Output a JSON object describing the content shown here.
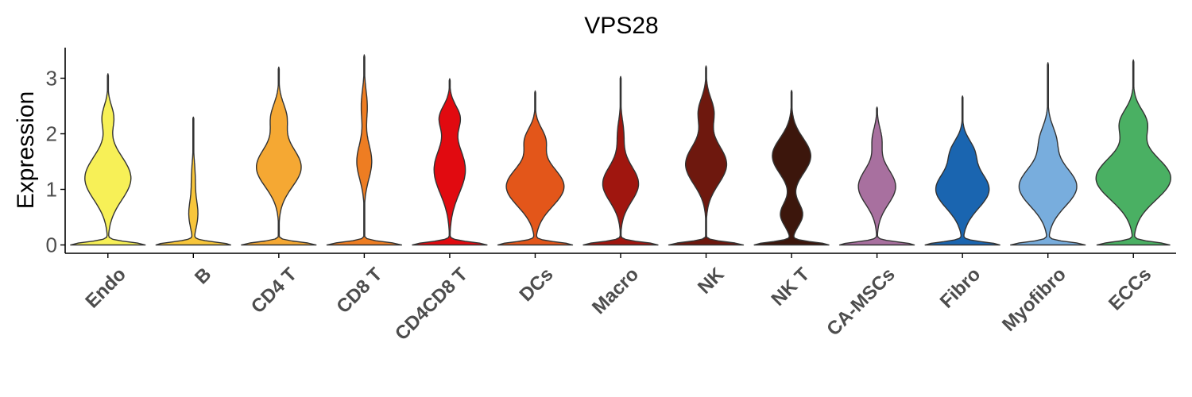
{
  "chart_data": {
    "type": "violin",
    "title": "VPS28",
    "xlabel": "",
    "ylabel": "Expression",
    "ylim": [
      -0.15,
      3.55
    ],
    "yticks": [
      0,
      1,
      2,
      3
    ],
    "grid": false,
    "legend": "none",
    "categories": [
      "Endo",
      "B",
      "CD4 T",
      "CD8 T",
      "CD4CD8 T",
      "DCs",
      "Macro",
      "NK",
      "NK T",
      "CA-MSCs",
      "Fibro",
      "Myofibro",
      "ECCs"
    ],
    "colors": [
      "#F7F057",
      "#F8C63B",
      "#F5A833",
      "#EE7D22",
      "#E10A10",
      "#E3561A",
      "#A0160F",
      "#6E180E",
      "#3C160C",
      "#A8709F",
      "#1A65B0",
      "#78ADDD",
      "#4AB063"
    ],
    "series": [
      {
        "name": "Endo",
        "max": 3.08,
        "zero_width": 1.0,
        "modes": [
          [
            1.2,
            0.62,
            0.55
          ],
          [
            2.3,
            0.15,
            0.3
          ]
        ]
      },
      {
        "name": "B",
        "max": 2.3,
        "zero_width": 1.0,
        "modes": [
          [
            0.55,
            0.12,
            0.35
          ],
          [
            1.2,
            0.05,
            0.4
          ]
        ]
      },
      {
        "name": "CD4 T",
        "max": 3.2,
        "zero_width": 1.0,
        "modes": [
          [
            1.4,
            0.6,
            0.5
          ],
          [
            2.3,
            0.2,
            0.35
          ]
        ]
      },
      {
        "name": "CD8 T",
        "max": 3.42,
        "zero_width": 1.0,
        "modes": [
          [
            1.5,
            0.2,
            0.45
          ],
          [
            2.5,
            0.08,
            0.4
          ]
        ]
      },
      {
        "name": "CD4CD8 T",
        "max": 2.99,
        "zero_width": 1.0,
        "modes": [
          [
            1.35,
            0.42,
            0.6
          ],
          [
            2.3,
            0.25,
            0.3
          ]
        ]
      },
      {
        "name": "DCs",
        "max": 2.77,
        "zero_width": 1.0,
        "modes": [
          [
            1.05,
            0.78,
            0.5
          ],
          [
            1.9,
            0.25,
            0.3
          ]
        ]
      },
      {
        "name": "Macro",
        "max": 3.03,
        "zero_width": 1.0,
        "modes": [
          [
            1.1,
            0.48,
            0.45
          ],
          [
            2.0,
            0.08,
            0.35
          ]
        ]
      },
      {
        "name": "NK",
        "max": 3.22,
        "zero_width": 1.0,
        "modes": [
          [
            1.45,
            0.55,
            0.5
          ],
          [
            2.4,
            0.2,
            0.35
          ]
        ]
      },
      {
        "name": "NK T",
        "max": 2.78,
        "zero_width": 1.0,
        "modes": [
          [
            1.6,
            0.52,
            0.45
          ],
          [
            0.55,
            0.3,
            0.3
          ]
        ]
      },
      {
        "name": "CA-MSCs",
        "max": 2.48,
        "zero_width": 1.0,
        "modes": [
          [
            1.05,
            0.5,
            0.45
          ],
          [
            1.9,
            0.12,
            0.3
          ]
        ]
      },
      {
        "name": "Fibro",
        "max": 2.68,
        "zero_width": 1.0,
        "modes": [
          [
            1.0,
            0.72,
            0.48
          ],
          [
            1.7,
            0.25,
            0.3
          ]
        ]
      },
      {
        "name": "Myofibro",
        "max": 3.28,
        "zero_width": 1.0,
        "modes": [
          [
            1.05,
            0.78,
            0.5
          ],
          [
            1.9,
            0.2,
            0.35
          ]
        ]
      },
      {
        "name": "ECCs",
        "max": 3.33,
        "zero_width": 0.85,
        "modes": [
          [
            1.2,
            0.88,
            0.55
          ],
          [
            2.2,
            0.3,
            0.35
          ]
        ]
      }
    ]
  }
}
